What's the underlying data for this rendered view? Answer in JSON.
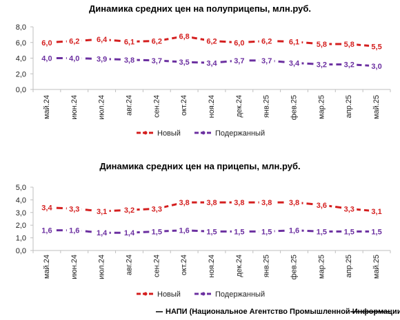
{
  "colors": {
    "new": "#d41e1e",
    "used": "#6b2fa0",
    "axis": "#bfbfbf",
    "text": "#222222"
  },
  "footer": "НАПИ (Национальное Агентство Промышленной Информации)",
  "chart_data": [
    {
      "type": "line",
      "title": "Динамика средних цен на полуприцепы, млн.руб.",
      "categories": [
        "май.24",
        "июн.24",
        "июл.24",
        "авг.24",
        "сен.24",
        "окт.24",
        "ноя.24",
        "дек.24",
        "янв.25",
        "фев.25",
        "мар.25",
        "апр.25",
        "май.25"
      ],
      "ylim": [
        0,
        8
      ],
      "yticks": [
        "0,0",
        "2,0",
        "4,0",
        "6,0",
        "8,0"
      ],
      "grid": false,
      "legend_position": "bottom",
      "series": [
        {
          "name": "Новый",
          "color": "#d41e1e",
          "values": [
            6.0,
            6.2,
            6.4,
            6.1,
            6.2,
            6.8,
            6.2,
            6.0,
            6.2,
            6.1,
            5.8,
            5.8,
            5.5
          ],
          "labels": [
            "6,0",
            "6,2",
            "6,4",
            "6,1",
            "6,2",
            "6,8",
            "6,2",
            "6,0",
            "6,2",
            "6,1",
            "5,8",
            "5,8",
            "5,5"
          ]
        },
        {
          "name": "Подержанный",
          "color": "#6b2fa0",
          "values": [
            4.0,
            4.0,
            3.9,
            3.8,
            3.7,
            3.5,
            3.4,
            3.7,
            3.7,
            3.4,
            3.2,
            3.2,
            3.0
          ],
          "labels": [
            "4,0",
            "4,0",
            "3,9",
            "3,8",
            "3,7",
            "3,5",
            "3,4",
            "3,7",
            "3,7",
            "3,4",
            "3,2",
            "3,2",
            "3,0"
          ]
        }
      ]
    },
    {
      "type": "line",
      "title": "Динамика средних цен на прицепы, млн.руб.",
      "categories": [
        "май.24",
        "июн.24",
        "июл.24",
        "авг.24",
        "сен.24",
        "окт.24",
        "ноя.24",
        "дек.24",
        "янв.25",
        "фев.25",
        "мар.25",
        "апр.25",
        "май.25"
      ],
      "ylim": [
        0,
        5
      ],
      "yticks": [
        "0,0",
        "1,0",
        "2,0",
        "3,0",
        "4,0",
        "5,0"
      ],
      "grid": false,
      "legend_position": "bottom",
      "series": [
        {
          "name": "Новый",
          "color": "#d41e1e",
          "values": [
            3.4,
            3.3,
            3.1,
            3.2,
            3.3,
            3.8,
            3.8,
            3.8,
            3.8,
            3.8,
            3.6,
            3.3,
            3.1
          ],
          "labels": [
            "3,4",
            "3,3",
            "3,1",
            "3,2",
            "3,3",
            "3,8",
            "3,8",
            "3,8",
            "3,8",
            "3,8",
            "3,6",
            "3,3",
            "3,1"
          ]
        },
        {
          "name": "Подержанный",
          "color": "#6b2fa0",
          "values": [
            1.6,
            1.6,
            1.4,
            1.4,
            1.5,
            1.6,
            1.5,
            1.5,
            1.5,
            1.6,
            1.5,
            1.5,
            1.5
          ],
          "labels": [
            "1,6",
            "1,6",
            "1,4",
            "1,4",
            "1,5",
            "1,6",
            "1,5",
            "1,5",
            "1,5",
            "1,6",
            "1,5",
            "1,5",
            "1,5"
          ]
        }
      ]
    }
  ]
}
